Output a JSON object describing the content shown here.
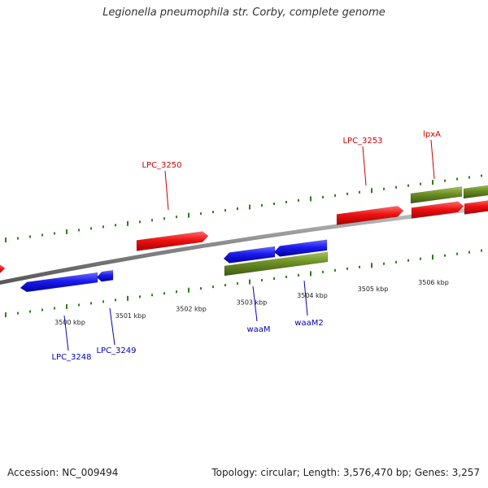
{
  "header": {
    "title": "Legionella pneumophila str. Corby, complete genome"
  },
  "footer": {
    "accession": "Accession: NC_009494",
    "summary": "Topology: circular; Length: 3,576,470 bp; Genes: 3,257"
  },
  "colors": {
    "forward_gene": "#ee1111",
    "reverse_gene": "#1a1aee",
    "rna_gene": "#6b8e23",
    "tick": "#2e7d1e",
    "backbone": "#8a8a8a",
    "forward_label": "#cc0000",
    "reverse_label": "#0000bb"
  },
  "scale": {
    "kbp_labels": [
      {
        "kbp": 3500,
        "text": "3500 kbp"
      },
      {
        "kbp": 3501,
        "text": "3501 kbp"
      },
      {
        "kbp": 3502,
        "text": "3502 kbp"
      },
      {
        "kbp": 3503,
        "text": "3503 kbp"
      },
      {
        "kbp": 3504,
        "text": "3504 kbp"
      },
      {
        "kbp": 3505,
        "text": "3505 kbp"
      },
      {
        "kbp": 3506,
        "text": "3506 kbp"
      }
    ]
  },
  "genes": {
    "forward_labels": [
      {
        "text": "LPC_3250"
      },
      {
        "text": "LPC_3253"
      },
      {
        "text": "lpxA"
      }
    ],
    "reverse_labels": [
      {
        "text": "LPC_3248"
      },
      {
        "text": "LPC_3249"
      },
      {
        "text": "waaM"
      },
      {
        "text": "waaM2"
      }
    ]
  }
}
